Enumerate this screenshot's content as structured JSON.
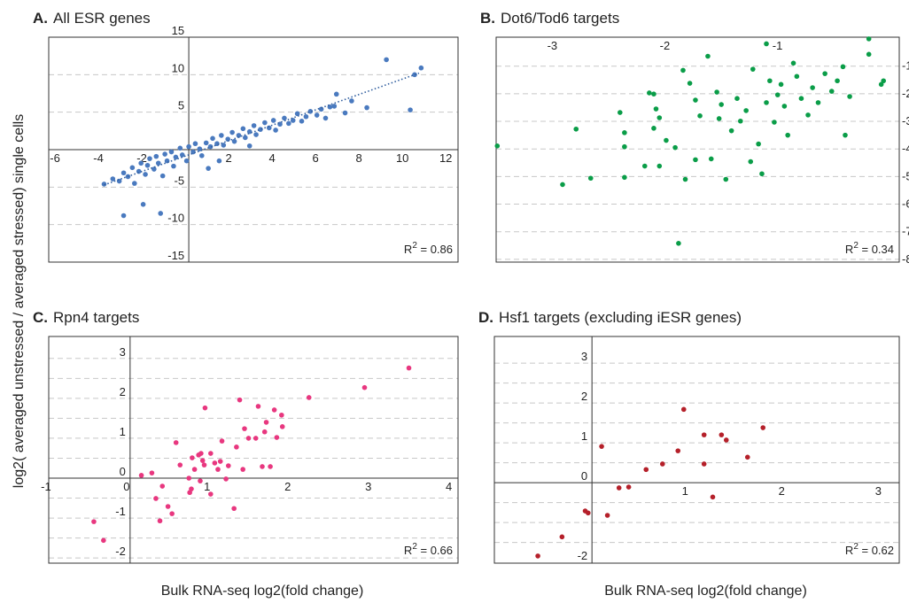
{
  "ylabel": "log2( averaged unstressed / averaged stressed) single cells",
  "chart_data": [
    {
      "type": "scatter",
      "label": "A.",
      "title": "All ESR genes",
      "color": "#4a7abf",
      "annotation": [
        "R",
        "2",
        " = 0.86"
      ],
      "axes_at_origin": true,
      "xlim": [
        -6.45,
        12.4
      ],
      "ylim": [
        -15,
        15
      ],
      "xticks": [
        -6,
        -4,
        -2,
        2,
        4,
        6,
        8,
        10,
        12
      ],
      "yticks": [
        -15,
        -10,
        -5,
        5,
        10,
        15
      ],
      "ygrid": [
        -10,
        -5,
        5,
        10
      ],
      "trendline": {
        "x": [
          -3.9,
          10.6
        ],
        "y": [
          -4.7,
          10.2
        ]
      },
      "x": [
        -3.9,
        -3.5,
        -3.2,
        -3,
        -2.8,
        -2.6,
        -2.5,
        -2.3,
        -2.2,
        -2,
        -1.9,
        -1.8,
        -1.6,
        -1.5,
        -1.4,
        -1.2,
        -1.1,
        -1,
        -0.8,
        -0.7,
        -0.6,
        -0.4,
        -0.3,
        -0.1,
        0,
        0.2,
        0.3,
        0.5,
        0.6,
        0.8,
        1,
        1.1,
        1.3,
        1.5,
        1.6,
        1.8,
        2,
        2.1,
        2.3,
        2.5,
        2.6,
        2.8,
        3,
        3.1,
        3.3,
        3.5,
        3.7,
        3.9,
        4,
        4.2,
        4.4,
        4.6,
        4.8,
        5,
        5.2,
        5.4,
        5.6,
        5.9,
        6.1,
        6.3,
        6.5,
        6.8,
        7.2,
        6.7,
        7.5,
        8.2,
        9.1,
        10.2,
        10.4,
        10.7,
        -3,
        -1.3,
        -2.1,
        1.4,
        0.9,
        2.8
      ],
      "y": [
        -4.6,
        -3.9,
        -4.2,
        -3.1,
        -3.6,
        -2.4,
        -4.5,
        -2.9,
        -1.8,
        -3.3,
        -2.1,
        -1.2,
        -2.6,
        -0.9,
        -1.8,
        -3.5,
        -0.6,
        -1.5,
        -0.3,
        -2.2,
        -1,
        0.2,
        -0.7,
        -1.5,
        0.4,
        -0.3,
        0.8,
        0.1,
        -0.8,
        0.9,
        0.4,
        1.5,
        0.8,
        1.9,
        0.6,
        1.4,
        2.3,
        1.1,
        1.9,
        2.8,
        1.6,
        2.4,
        3.2,
        2,
        2.7,
        3.6,
        2.9,
        3.9,
        2.6,
        3.4,
        4.2,
        3.5,
        3.9,
        4.8,
        3.8,
        4.4,
        5.1,
        4.6,
        5.4,
        4.2,
        5.7,
        7.4,
        4.9,
        5.8,
        6.5,
        5.6,
        12,
        5.3,
        10,
        10.9,
        -8.8,
        -8.5,
        -7.3,
        -1.5,
        -2.5,
        0.5
      ]
    },
    {
      "type": "scatter",
      "label": "B.",
      "title": "Dot6/Tod6 targets",
      "color": "#0a9d48",
      "annotation": [
        "R",
        "2",
        " = 0.34"
      ],
      "axes_at_origin": false,
      "xlim": [
        -3.53,
        0.05
      ],
      "ylim": [
        -8.1,
        0.05
      ],
      "xticks": [
        -3,
        -2,
        -1
      ],
      "yticks": [
        -1,
        -2,
        -3,
        -4,
        -5,
        -6,
        -7,
        -8
      ],
      "ygrid": [
        -1,
        -2,
        -3,
        -4,
        -5,
        -6,
        -7,
        -8
      ],
      "x": [
        -3.52,
        -2.94,
        -2.82,
        -2.69,
        -2.43,
        -2.39,
        -2.39,
        -2.39,
        -2.17,
        -2.13,
        -2.11,
        -2.08,
        -2.13,
        -2.02,
        -2.21,
        -1.87,
        -1.81,
        -1.76,
        -1.72,
        -1.91,
        -1.65,
        -1.57,
        -1.55,
        -1.49,
        -1.44,
        -1.39,
        -1.31,
        -1.25,
        -1.2,
        -1.17,
        -1.13,
        -1.1,
        -1.06,
        -1.03,
        -1.0,
        -0.97,
        -0.94,
        -0.89,
        -0.86,
        -0.82,
        -0.76,
        -0.72,
        -0.67,
        -0.61,
        -0.55,
        -0.5,
        -0.45,
        -0.39,
        -0.43,
        -0.22,
        -0.22,
        -0.11,
        -0.09,
        -1.62,
        -1.94,
        -1.76,
        -2.08,
        -1.85,
        -1.53,
        -1.36,
        -1.13,
        -1.27
      ],
      "y": [
        -3.89,
        -5.29,
        -3.28,
        -5.06,
        -2.68,
        -3.92,
        -5.03,
        -3.41,
        -1.97,
        -2.01,
        -2.55,
        -2.87,
        -3.25,
        -3.69,
        -4.62,
        -1.15,
        -1.62,
        -2.23,
        -2.8,
        -7.42,
        -0.64,
        -1.94,
        -2.9,
        -5.1,
        -3.34,
        -2.17,
        -2.61,
        -1.11,
        -3.82,
        -4.9,
        -0.19,
        -1.53,
        -3.03,
        -2.04,
        -1.66,
        -2.45,
        -3.5,
        -0.89,
        -1.37,
        -2.17,
        -2.77,
        -1.78,
        -2.32,
        -1.27,
        -1.91,
        -1.53,
        -1.02,
        -2.1,
        -3.5,
        -0.01,
        -0.57,
        -1.66,
        -1.53,
        -4.36,
        -3.95,
        -4.39,
        -4.62,
        -5.1,
        -2.39,
        -2.99,
        -2.32,
        -4.46
      ]
    },
    {
      "type": "scatter",
      "label": "C.",
      "title": "Rpn4 targets",
      "color": "#e8377f",
      "annotation": [
        "R",
        "2",
        " = 0.66"
      ],
      "axes_at_origin": true,
      "xlim": [
        -1.01,
        4.07
      ],
      "ylim": [
        -2.13,
        3.55
      ],
      "xticks": [
        -1,
        0,
        1,
        2,
        3,
        4
      ],
      "yticks": [
        -2,
        -1,
        0,
        1,
        2,
        3
      ],
      "ygrid": [
        -2,
        -1.5,
        -1,
        -0.5,
        0.5,
        1,
        1.5,
        2,
        2.5,
        3
      ],
      "x": [
        -0.45,
        -0.33,
        0.14,
        0.27,
        0.32,
        0.4,
        0.37,
        0.47,
        0.57,
        0.62,
        0.73,
        0.74,
        0.77,
        0.8,
        0.85,
        0.87,
        0.9,
        0.93,
        0.92,
        1,
        1,
        1.05,
        1.09,
        1.12,
        1.14,
        1.19,
        1.29,
        1.32,
        1.36,
        1.4,
        1.42,
        1.47,
        1.56,
        1.59,
        1.64,
        1.67,
        1.69,
        1.74,
        1.79,
        1.82,
        1.88,
        1.89,
        2.22,
        2.91,
        3.46,
        0.76,
        0.52,
        0.88,
        1.22
      ],
      "y": [
        -1.09,
        -1.56,
        0.07,
        0.13,
        -0.51,
        -0.2,
        -1.07,
        -0.71,
        0.89,
        0.33,
        0,
        -0.36,
        0.51,
        0.22,
        0.58,
        -0.07,
        0.44,
        1.76,
        0.33,
        0.62,
        -0.4,
        0.38,
        0.22,
        0.42,
        0.93,
        -0.02,
        -0.76,
        0.78,
        1.96,
        0.22,
        1.24,
        1.0,
        1.0,
        1.8,
        0.29,
        1.16,
        1.4,
        0.29,
        1.71,
        1.02,
        1.58,
        1.29,
        2.02,
        2.27,
        2.76,
        -0.27,
        -0.89,
        0.62,
        0.31
      ],
      "xlabel": "Bulk RNA-seq log2(fold change)"
    },
    {
      "type": "scatter",
      "label": "D.",
      "title": "Hsf1 targets (excluding iESR genes)",
      "color": "#b5202a",
      "annotation": [
        "R",
        "2",
        " = 0.62"
      ],
      "axes_at_origin": true,
      "xlim": [
        -1.01,
        3.18
      ],
      "ylim": [
        -2.02,
        3.67
      ],
      "xticks": [
        1,
        2,
        3
      ],
      "yticks": [
        -2,
        0,
        1,
        2,
        3
      ],
      "ygrid": [
        -1.5,
        -1,
        -0.5,
        0.5,
        1,
        1.5,
        2,
        2.5,
        3
      ],
      "x": [
        -0.56,
        -0.31,
        -0.07,
        -0.04,
        0.16,
        0.28,
        0.38,
        0.1,
        0.56,
        0.73,
        0.89,
        0.95,
        1.16,
        1.16,
        1.25,
        1.34,
        1.39,
        1.61,
        1.77
      ],
      "y": [
        -1.84,
        -1.36,
        -0.71,
        -0.76,
        -0.82,
        -0.13,
        -0.11,
        0.91,
        0.33,
        0.47,
        0.8,
        1.84,
        1.2,
        0.47,
        -0.36,
        1.2,
        1.07,
        0.64,
        1.38
      ],
      "xlabel": "Bulk RNA-seq log2(fold change)"
    }
  ]
}
